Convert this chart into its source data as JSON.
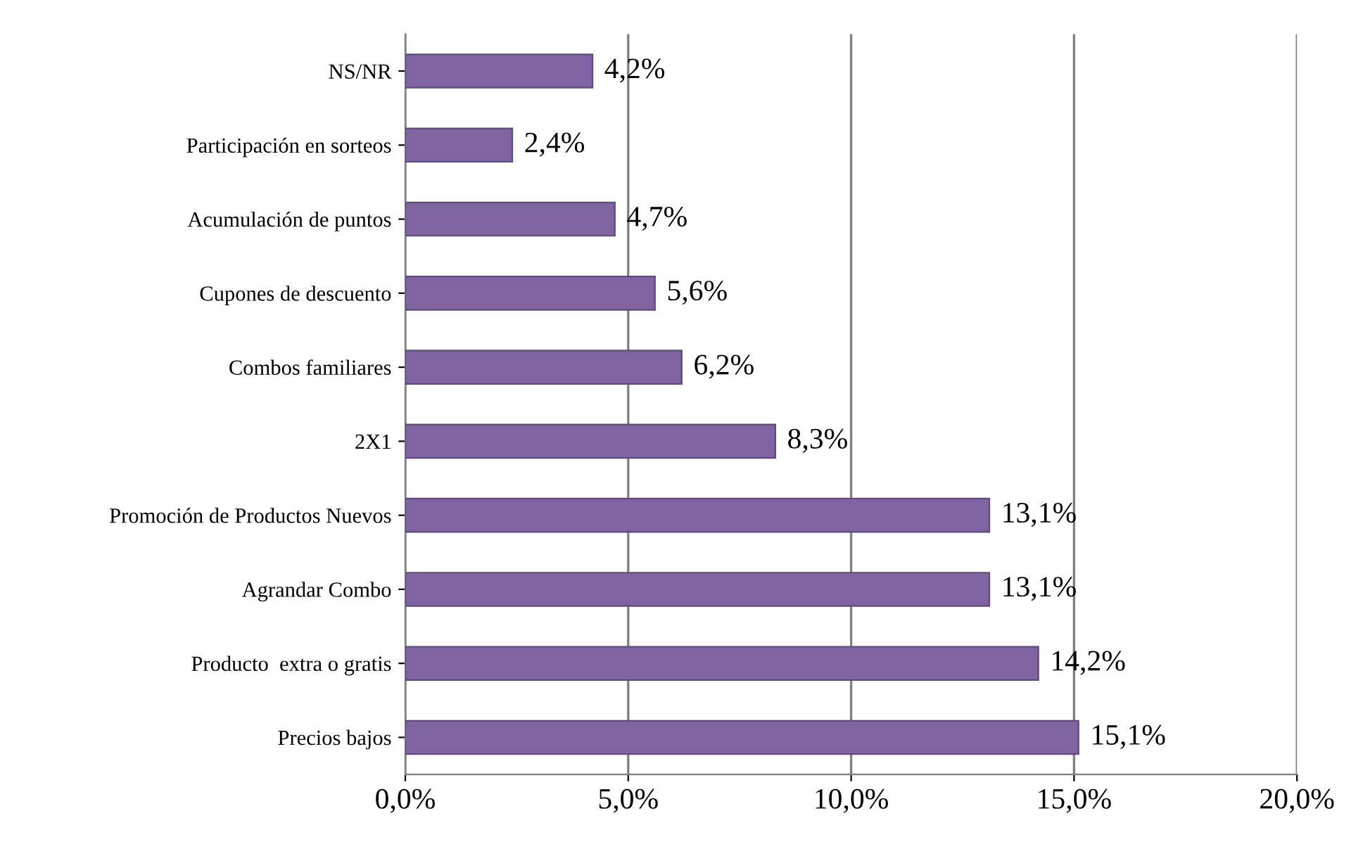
{
  "chart_data": {
    "type": "bar",
    "orientation": "horizontal",
    "categories": [
      "NS/NR",
      "Participación en sorteos",
      "Acumulación de puntos",
      "Cupones de descuento",
      "Combos familiares",
      "2X1",
      "Promoción de Productos Nuevos",
      "Agrandar Combo",
      "Producto  extra o gratis",
      "Precios bajos"
    ],
    "values": [
      4.2,
      2.4,
      4.7,
      5.6,
      6.2,
      8.3,
      13.1,
      13.1,
      14.2,
      15.1
    ],
    "value_labels": [
      "4,2%",
      "2,4%",
      "4,7%",
      "5,6%",
      "6,2%",
      "8,3%",
      "13,1%",
      "13,1%",
      "14,2%",
      "15,1%"
    ],
    "color": "#8064a2",
    "xlim": [
      0,
      20
    ],
    "xticks": [
      {
        "value": 0,
        "label": "0,0%"
      },
      {
        "value": 5,
        "label": "5,0%"
      },
      {
        "value": 10,
        "label": "10,0%"
      },
      {
        "value": 15,
        "label": "15,0%"
      },
      {
        "value": 20,
        "label": "20,0%"
      }
    ],
    "grid": "x"
  }
}
